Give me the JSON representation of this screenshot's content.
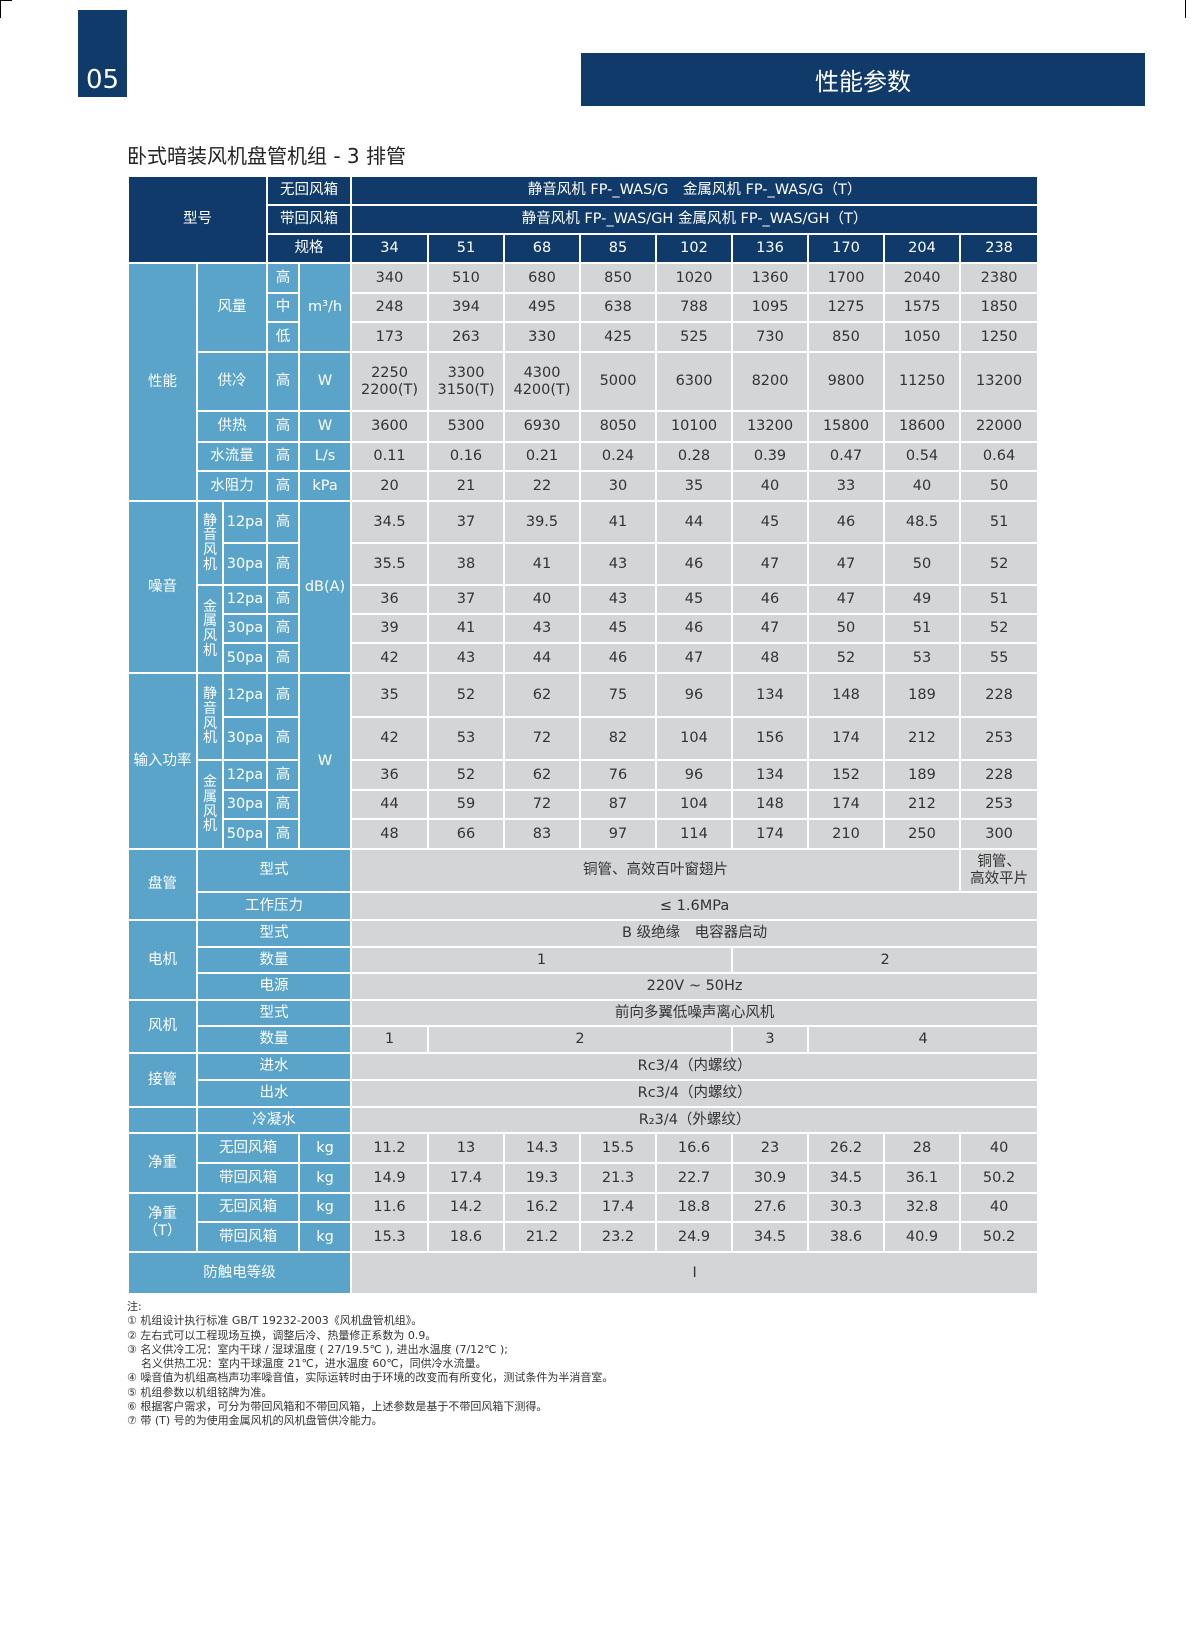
{
  "page": {
    "number": "05",
    "section_title": "性能参数",
    "heading": "卧式暗装风机盘管机组 - 3 排管"
  },
  "colors": {
    "header": "#0f3a69",
    "side": "#5aa3c9",
    "cell": "#d4d5d7"
  },
  "table": {
    "model_label": "型号",
    "no_return": "无回风箱",
    "with_return": "带回风箱",
    "spec": "规格",
    "model_no_return": "静音风机 FP-_WAS/G　金属风机 FP-_WAS/G（T）",
    "model_with_return": "静音风机 FP-_WAS/GH  金属风机 FP-_WAS/GH（T）",
    "specs": [
      "34",
      "51",
      "68",
      "85",
      "102",
      "136",
      "170",
      "204",
      "238"
    ],
    "levels": {
      "high": "高",
      "mid": "中",
      "low": "低"
    },
    "pressures": {
      "p12": "12pa",
      "p30": "30pa",
      "p50": "50pa"
    },
    "performance": {
      "label": "性能",
      "airflow": {
        "label": "风量",
        "unit": "m³/h",
        "high": [
          "340",
          "510",
          "680",
          "850",
          "1020",
          "1360",
          "1700",
          "2040",
          "2380"
        ],
        "mid": [
          "248",
          "394",
          "495",
          "638",
          "788",
          "1095",
          "1275",
          "1575",
          "1850"
        ],
        "low": [
          "173",
          "263",
          "330",
          "425",
          "525",
          "730",
          "850",
          "1050",
          "1250"
        ]
      },
      "cooling": {
        "label": "供冷",
        "unit": "W",
        "values": [
          "2250\n2200(T)",
          "3300\n3150(T)",
          "4300\n4200(T)",
          "5000",
          "6300",
          "8200",
          "9800",
          "11250",
          "13200"
        ]
      },
      "heating": {
        "label": "供热",
        "unit": "W",
        "values": [
          "3600",
          "5300",
          "6930",
          "8050",
          "10100",
          "13200",
          "15800",
          "18600",
          "22000"
        ]
      },
      "water_flow": {
        "label": "水流量",
        "unit": "L/s",
        "values": [
          "0.11",
          "0.16",
          "0.21",
          "0.24",
          "0.28",
          "0.39",
          "0.47",
          "0.54",
          "0.64"
        ]
      },
      "water_resistance": {
        "label": "水阻力",
        "unit": "kPa",
        "values": [
          "20",
          "21",
          "22",
          "30",
          "35",
          "40",
          "33",
          "40",
          "50"
        ]
      }
    },
    "noise": {
      "label": "噪音",
      "unit": "dB(A)",
      "silent_fan": "静音风机",
      "metal_fan": "金属风机",
      "silent_p12": [
        "34.5",
        "37",
        "39.5",
        "41",
        "44",
        "45",
        "46",
        "48.5",
        "51"
      ],
      "silent_p30": [
        "35.5",
        "38",
        "41",
        "43",
        "46",
        "47",
        "47",
        "50",
        "52"
      ],
      "metal_p12": [
        "36",
        "37",
        "40",
        "43",
        "45",
        "46",
        "47",
        "49",
        "51"
      ],
      "metal_p30": [
        "39",
        "41",
        "43",
        "45",
        "46",
        "47",
        "50",
        "51",
        "52"
      ],
      "metal_p50": [
        "42",
        "43",
        "44",
        "46",
        "47",
        "48",
        "52",
        "53",
        "55"
      ]
    },
    "power": {
      "label": "输入功率",
      "unit": "W",
      "silent_fan": "静音风机",
      "metal_fan": "金属风机",
      "silent_p12": [
        "35",
        "52",
        "62",
        "75",
        "96",
        "134",
        "148",
        "189",
        "228"
      ],
      "silent_p30": [
        "42",
        "53",
        "72",
        "82",
        "104",
        "156",
        "174",
        "212",
        "253"
      ],
      "metal_p12": [
        "36",
        "52",
        "62",
        "76",
        "96",
        "134",
        "152",
        "189",
        "228"
      ],
      "metal_p30": [
        "44",
        "59",
        "72",
        "87",
        "104",
        "148",
        "174",
        "212",
        "253"
      ],
      "metal_p50": [
        "48",
        "66",
        "83",
        "97",
        "114",
        "174",
        "210",
        "250",
        "300"
      ]
    },
    "coil": {
      "label": "盘管",
      "type_label": "型式",
      "type_value": "铜管、高效百叶窗翅片",
      "type_value_238": "铜管、\n高效平片",
      "pressure_label": "工作压力",
      "pressure_value": "≤ 1.6MPa"
    },
    "motor": {
      "label": "电机",
      "type_label": "型式",
      "type_value": "B 级绝缘　电容器启动",
      "qty_label": "数量",
      "qty": [
        "1",
        "2"
      ],
      "power_label": "电源",
      "power_value": "220V ~ 50Hz"
    },
    "fan": {
      "label": "风机",
      "type_label": "型式",
      "type_value": "前向多翼低噪声离心风机",
      "qty_label": "数量",
      "qty": [
        "1",
        "2",
        "3",
        "4"
      ]
    },
    "piping": {
      "label": "接管",
      "inlet_label": "进水",
      "inlet_value": "Rc3/4（内螺纹）",
      "outlet_label": "出水",
      "outlet_value": "Rc3/4（内螺纹）",
      "condensate_label": "冷凝水",
      "condensate_value": "R₂3/4（外螺纹）"
    },
    "weight": {
      "label": "净重",
      "unit": "kg",
      "no_return": "无回风箱",
      "with_return": "带回风箱",
      "no_return_values": [
        "11.2",
        "13",
        "14.3",
        "15.5",
        "16.6",
        "23",
        "26.2",
        "28",
        "40"
      ],
      "with_return_values": [
        "14.9",
        "17.4",
        "19.3",
        "21.3",
        "22.7",
        "30.9",
        "34.5",
        "36.1",
        "50.2"
      ]
    },
    "weight_t": {
      "label": "净重\n（T）",
      "unit": "kg",
      "no_return": "无回风箱",
      "with_return": "带回风箱",
      "no_return_values": [
        "11.6",
        "14.2",
        "16.2",
        "17.4",
        "18.8",
        "27.6",
        "30.3",
        "32.8",
        "40"
      ],
      "with_return_values": [
        "15.3",
        "18.6",
        "21.2",
        "23.2",
        "24.9",
        "34.5",
        "38.6",
        "40.9",
        "50.2"
      ]
    },
    "shock": {
      "label": "防触电等级",
      "value": "I"
    }
  },
  "notes": [
    "注:",
    "① 机组设计执行标准 GB/T 19232-2003《风机盘管机组》。",
    "② 左右式可以工程现场互换，调整后冷、热量修正系数为 0.9。",
    "③ 名义供冷工况：室内干球 / 湿球温度 ( 27/19.5℃ ), 进出水温度 (7/12℃ );",
    "    名义供热工况：室内干球温度 21℃，进水温度 60℃，同供冷水流量。",
    "④ 噪音值为机组高档声功率噪音值，实际运转时由于环境的改变而有所变化，测试条件为半消音室。",
    "⑤ 机组参数以机组铭牌为准。",
    "⑥ 根据客户需求，可分为带回风箱和不带回风箱，上述参数是基于不带回风箱下测得。",
    "⑦ 带 (T) 号的为使用金属风机的风机盘管供冷能力。"
  ]
}
